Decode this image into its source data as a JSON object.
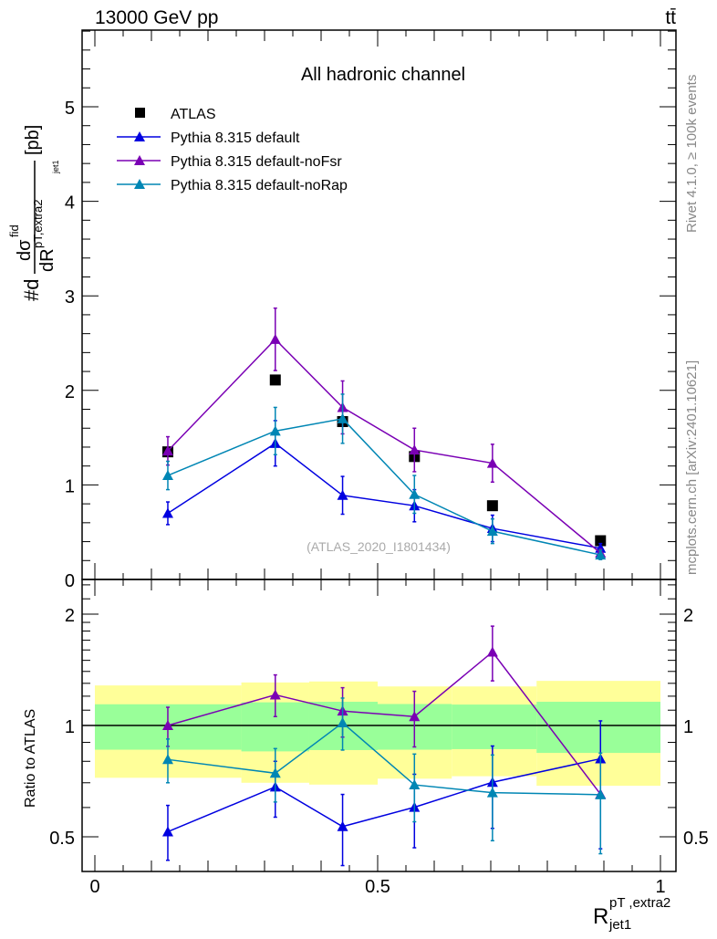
{
  "header": {
    "left": "13000 GeV pp",
    "right": "tt̄"
  },
  "side": {
    "rivet": "Rivet 4.1.0, ≥ 100k events",
    "mcplots": "mcplots.cern.ch [arXiv:2401.10621]"
  },
  "watermark": "(ATLAS_2020_I1801434)",
  "colors": {
    "atlas": "#000000",
    "default": "#0000e0",
    "noFsr": "#7a00b4",
    "noRap": "#0086b4",
    "band_inner": "#99ff99",
    "band_outer": "#ffff99"
  },
  "chart_data": [
    {
      "type": "scatter",
      "title": "All hadronic channel",
      "ylabel": "#d dσ^fid / dR^pT,extra2_jet1 [pb]",
      "ylabel_parts": {
        "pre": "#d",
        "num": "dσ",
        "sup": "fid",
        "den": "dR",
        "den_sup": "pT,extra2",
        "den_sub": "jet1",
        "unit": "[pb]"
      },
      "xlim": [
        0,
        1
      ],
      "ylim": [
        0,
        5.8
      ],
      "yticks": [
        0,
        1,
        2,
        3,
        4,
        5
      ],
      "legend_placement": "top-left",
      "x": [
        0.129,
        0.319,
        0.438,
        0.565,
        0.703,
        0.894
      ],
      "series": [
        {
          "name": "ATLAS",
          "key": "atlas",
          "marker": "square",
          "values": [
            1.35,
            2.11,
            1.67,
            1.3,
            0.78,
            0.41
          ]
        },
        {
          "name": "Pythia 8.315 default",
          "key": "default",
          "marker": "triangle",
          "values": [
            0.7,
            1.44,
            0.89,
            0.78,
            0.54,
            0.33
          ],
          "err": [
            0.12,
            0.24,
            0.2,
            0.17,
            0.14,
            0.05
          ]
        },
        {
          "name": "Pythia 8.315 default-noFsr",
          "key": "noFsr",
          "marker": "triangle",
          "values": [
            1.36,
            2.54,
            1.82,
            1.37,
            1.23,
            0.28
          ],
          "err": [
            0.15,
            0.33,
            0.28,
            0.23,
            0.2,
            0.04
          ]
        },
        {
          "name": "Pythia 8.315 default-noRap",
          "key": "noRap",
          "marker": "triangle",
          "values": [
            1.1,
            1.57,
            1.7,
            0.9,
            0.51,
            0.26
          ],
          "err": [
            0.15,
            0.25,
            0.26,
            0.2,
            0.13,
            0.05
          ]
        }
      ]
    },
    {
      "type": "line",
      "ylabel": "Ratio to ATLAS",
      "xlabel": "R^pT,extra2_jet1",
      "xlabel_parts": {
        "main": "R",
        "sup": "pT ,extra2",
        "sub": "jet1"
      },
      "xlim": [
        0,
        1
      ],
      "ylim": [
        0.403,
        2.48
      ],
      "yscale": "log",
      "xticks": [
        {
          "v": 0,
          "label": "0"
        },
        {
          "v": 0.5,
          "label": "0.5"
        },
        {
          "v": 1,
          "label": "1"
        }
      ],
      "yticks": [
        {
          "v": 0.5,
          "label": "0.5"
        },
        {
          "v": 1,
          "label": "1"
        },
        {
          "v": 2,
          "label": "2"
        }
      ],
      "bin_edges": [
        0,
        0.259,
        0.379,
        0.5,
        0.631,
        0.781,
        1.0
      ],
      "band_outer": [
        [
          0.722,
          1.283
        ],
        [
          0.7,
          1.307
        ],
        [
          0.692,
          1.315
        ],
        [
          0.718,
          1.275
        ],
        [
          0.729,
          1.275
        ],
        [
          0.687,
          1.32
        ]
      ],
      "band_inner": [
        [
          0.86,
          1.141
        ],
        [
          0.851,
          1.155
        ],
        [
          0.858,
          1.159
        ],
        [
          0.86,
          1.143
        ],
        [
          0.863,
          1.139
        ],
        [
          0.843,
          1.159
        ]
      ],
      "x": [
        0.129,
        0.319,
        0.438,
        0.565,
        0.703,
        0.894
      ],
      "series": [
        {
          "name": "Pythia 8.315 default",
          "key": "default",
          "values": [
            0.516,
            0.682,
            0.533,
            0.601,
            0.702,
            0.813
          ],
          "lo": [
            0.432,
            0.565,
            0.418,
            0.467,
            0.527,
            0.464
          ],
          "hi": [
            0.608,
            0.8,
            0.651,
            0.738,
            0.88,
            1.029
          ]
        },
        {
          "name": "Pythia 8.315 default-noFsr",
          "key": "noFsr",
          "values": [
            1.0,
            1.21,
            1.094,
            1.057,
            1.58,
            0.652
          ],
          "lo": [
            0.878,
            1.057,
            0.93,
            0.875,
            1.32,
            0.652
          ],
          "hi": [
            1.12,
            1.37,
            1.265,
            1.237,
            1.856,
            0.652
          ]
        },
        {
          "name": "Pythia 8.315 default-noRap",
          "key": "noRap",
          "values": [
            0.809,
            0.743,
            1.017,
            0.691,
            0.658,
            0.65
          ],
          "lo": [
            0.7,
            0.621,
            0.858,
            0.549,
            0.488,
            0.45
          ],
          "hi": [
            0.919,
            0.866,
            1.186,
            0.837,
            0.832,
            0.842
          ]
        }
      ]
    }
  ]
}
